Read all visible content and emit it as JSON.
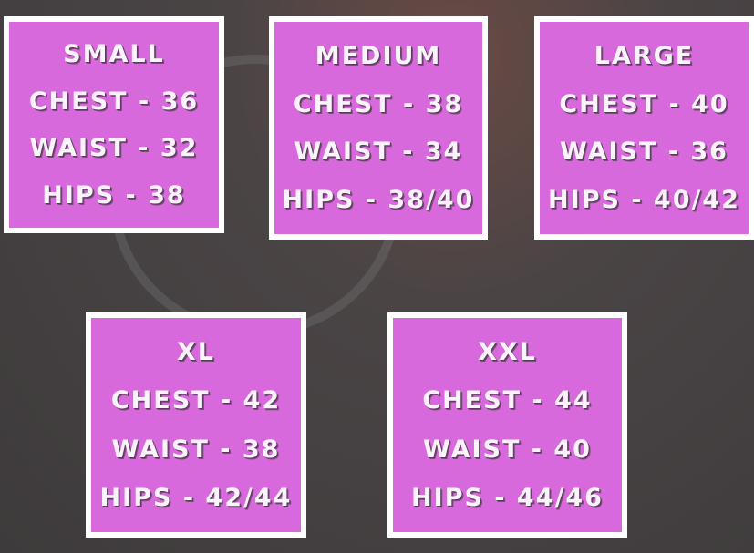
{
  "sizes": [
    {
      "name": "SMALL",
      "chest": "CHEST - 36",
      "waist": "WAIST - 32",
      "hips": "HIPS - 38"
    },
    {
      "name": "MEDIUM",
      "chest": "CHEST - 38",
      "waist": "WAIST - 34",
      "hips": "HIPS - 38/40"
    },
    {
      "name": "LARGE",
      "chest": "CHEST - 40",
      "waist": "WAIST - 36",
      "hips": "HIPS - 40/42"
    },
    {
      "name": "XL",
      "chest": "CHEST - 42",
      "waist": "WAIST - 38",
      "hips": "HIPS - 42/44"
    },
    {
      "name": "XXL",
      "chest": "CHEST - 44",
      "waist": "WAIST - 40",
      "hips": "HIPS - 44/46"
    }
  ],
  "colors": {
    "box": "#d769dc",
    "border": "#ffffff",
    "text": "#fbf3fb",
    "background": "#444041"
  }
}
